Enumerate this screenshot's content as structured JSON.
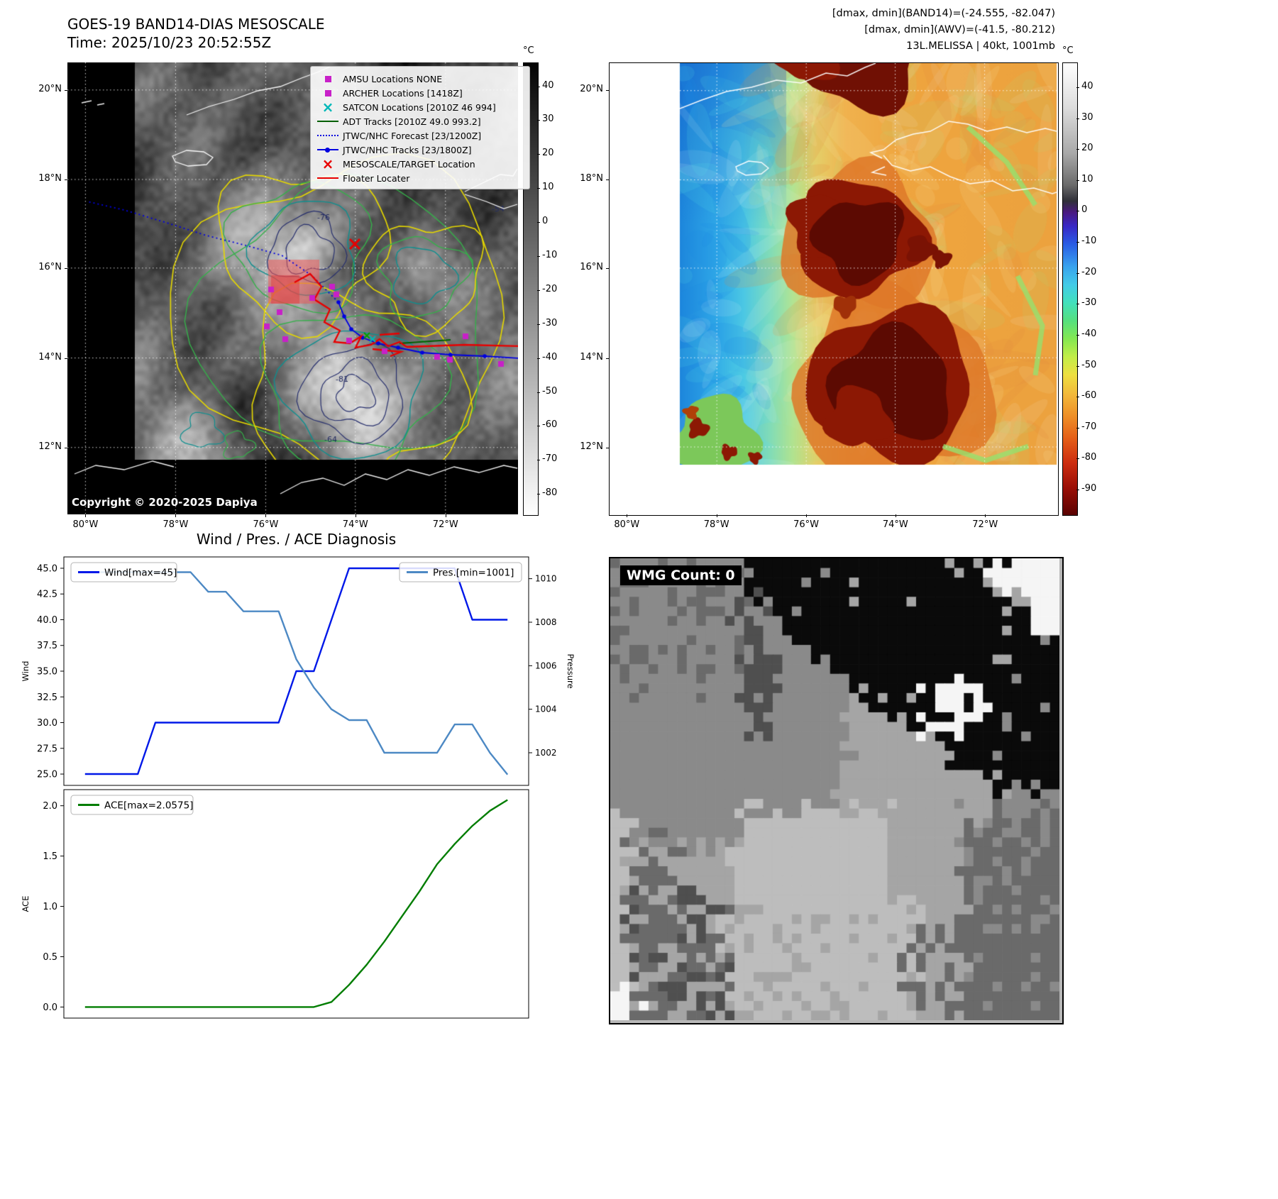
{
  "band14": {
    "title": "GOES-19 BAND14-DIAS MESOSCALE",
    "time": "Time: 2025/10/23 20:52:55Z",
    "copyright": "Copyright © 2020-2025 Dapiya",
    "colorbar_unit": "°C",
    "colorbar_ticks": [
      "40",
      "30",
      "20",
      "10",
      "0",
      "-10",
      "-20",
      "-30",
      "-40",
      "-50",
      "-60",
      "-70",
      "-80"
    ],
    "lon_ticks": [
      "80°W",
      "78°W",
      "76°W",
      "74°W",
      "72°W"
    ],
    "lat_ticks": [
      "20°N",
      "18°N",
      "16°N",
      "14°N",
      "12°N"
    ],
    "contour_labels": [
      "-76",
      "-54",
      "-81",
      "-64"
    ],
    "legend_items": [
      {
        "label": "AMSU Locations NONE",
        "marker": "square",
        "color": "#c820c8"
      },
      {
        "label": "ARCHER Locations [1418Z]",
        "marker": "square",
        "color": "#c820c8"
      },
      {
        "label": "SATCON Locations [2010Z 46 994]",
        "marker": "x",
        "color": "#00b8b8"
      },
      {
        "label": "ADT Tracks [2010Z 49.0 993.2]",
        "marker": "line",
        "color": "#005f00"
      },
      {
        "label": "JTWC/NHC Forecast [23/1200Z]",
        "marker": "dotted",
        "color": "#0000e0"
      },
      {
        "label": "JTWC/NHC Tracks [23/1800Z]",
        "marker": "line-dot",
        "color": "#0000e0"
      },
      {
        "label": "MESOSCALE/TARGET Location",
        "marker": "x",
        "color": "#e80000"
      },
      {
        "label": "Floater Locater",
        "marker": "line",
        "color": "#e80000"
      }
    ]
  },
  "awv": {
    "header_lines": [
      "[dmax, dmin](BAND14)=(-24.555, -82.047)",
      "[dmax, dmin](AWV)=(-41.5, -80.212)",
      "13L.MELISSA | 40kt, 1001mb"
    ],
    "colorbar_unit": "°C",
    "colorbar_ticks": [
      "40",
      "30",
      "20",
      "10",
      "0",
      "-10",
      "-20",
      "-30",
      "-40",
      "-50",
      "-60",
      "-70",
      "-80",
      "-90"
    ],
    "lon_ticks": [
      "80°W",
      "78°W",
      "76°W",
      "74°W",
      "72°W"
    ],
    "lat_ticks": [
      "20°N",
      "18°N",
      "16°N",
      "14°N",
      "12°N"
    ]
  },
  "diagnosis": {
    "title": "Wind / Pres. / ACE Diagnosis"
  },
  "wmg": {
    "label": "WMG Count: 0"
  },
  "chart_data": [
    {
      "type": "line",
      "title": "Wind / Pres. / ACE Diagnosis",
      "x": [
        0,
        1,
        2,
        3,
        4,
        5,
        6,
        7,
        8,
        9,
        10,
        11,
        12,
        13,
        14,
        15,
        16,
        17,
        18,
        19,
        20,
        21,
        22,
        23,
        24
      ],
      "series": [
        {
          "name": "Wind[max=45]",
          "axis": "left",
          "color": "#0018e8",
          "values": [
            25,
            25,
            25,
            25,
            30,
            30,
            30,
            30,
            30,
            30,
            30,
            30,
            35,
            35,
            40,
            45,
            45,
            45,
            45,
            45,
            45,
            45,
            40,
            40,
            40
          ]
        },
        {
          "name": "Pres.[min=1001]",
          "axis": "right",
          "color": "#4d89c4",
          "values": [
            1010.3,
            1010.3,
            1010.3,
            1010.3,
            1010.3,
            1010.3,
            1010.3,
            1009.4,
            1009.4,
            1008.5,
            1008.5,
            1008.5,
            1006.3,
            1005.0,
            1004.0,
            1003.5,
            1003.5,
            1002.0,
            1002.0,
            1002.0,
            1002.0,
            1003.3,
            1003.3,
            1002.0,
            1001.0
          ]
        }
      ],
      "ylabel_left": "Wind",
      "ylabel_right": "Pressure",
      "yticks_left": [
        "45.0",
        "42.5",
        "40.0",
        "37.5",
        "35.0",
        "32.5",
        "30.0",
        "27.5",
        "25.0"
      ],
      "yticks_right": [
        "1010",
        "1008",
        "1006",
        "1004",
        "1002"
      ],
      "ylim_left": [
        23.9,
        46.1
      ],
      "ylim_right": [
        1000.5,
        1011.0
      ],
      "legend_position": "top",
      "grid": false
    },
    {
      "type": "line",
      "title": "",
      "x": [
        0,
        1,
        2,
        3,
        4,
        5,
        6,
        7,
        8,
        9,
        10,
        11,
        12,
        13,
        14,
        15,
        16,
        17,
        18,
        19,
        20,
        21,
        22,
        23,
        24
      ],
      "series": [
        {
          "name": "ACE[max=2.0575]",
          "axis": "left",
          "color": "#007d00",
          "values": [
            0,
            0,
            0,
            0,
            0,
            0,
            0,
            0,
            0,
            0,
            0,
            0,
            0,
            0,
            0.05,
            0.22,
            0.42,
            0.65,
            0.9,
            1.15,
            1.42,
            1.62,
            1.8,
            1.95,
            2.0575
          ]
        }
      ],
      "ylabel_left": "ACE",
      "yticks_left": [
        "2.0",
        "1.5",
        "1.0",
        "0.5",
        "0.0"
      ],
      "ylim_left": [
        -0.11,
        2.16
      ],
      "legend_position": "top-left",
      "grid": false
    }
  ]
}
